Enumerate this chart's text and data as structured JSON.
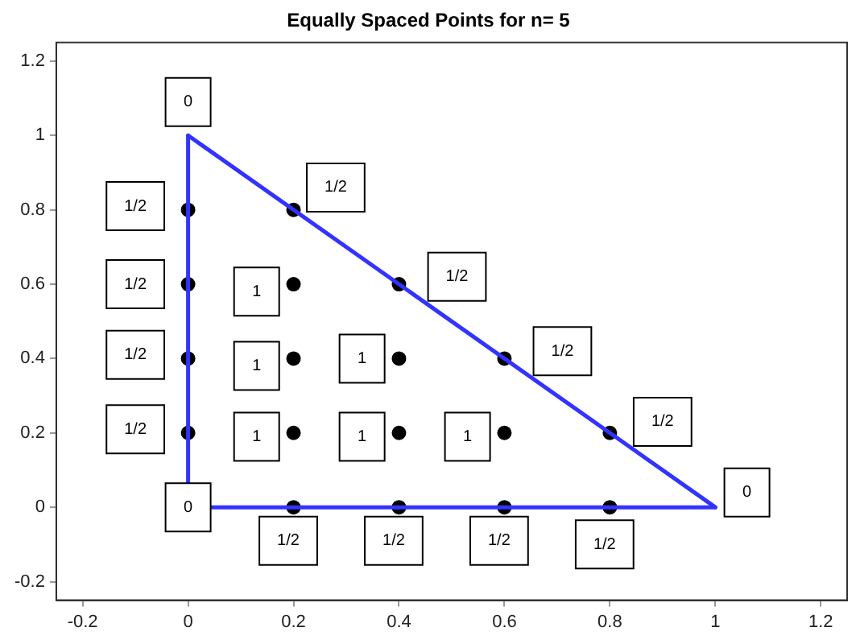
{
  "chart_data": {
    "type": "scatter",
    "title": "Equally Spaced Points for n= 5",
    "xlim": [
      -0.25,
      1.25
    ],
    "ylim": [
      -0.25,
      1.25
    ],
    "xticks": [
      -0.2,
      0,
      0.2,
      0.4,
      0.6,
      0.8,
      1,
      1.2
    ],
    "yticks": [
      -0.2,
      0,
      0.2,
      0.4,
      0.6,
      0.8,
      1,
      1.2
    ],
    "grid": false,
    "legend": false,
    "series": [
      {
        "type": "line",
        "color": "#3333ff",
        "x": [
          0,
          1
        ],
        "values": [
          0,
          0
        ]
      },
      {
        "type": "line",
        "color": "#3333ff",
        "x": [
          0,
          1
        ],
        "values": [
          1,
          0
        ]
      },
      {
        "type": "line",
        "color": "#3333ff",
        "x": [
          0,
          0
        ],
        "values": [
          0,
          1
        ]
      },
      {
        "color": "#000000",
        "marker": "circle",
        "x": [
          0,
          0,
          0,
          0,
          0.2,
          0.4,
          0.6,
          0.8,
          0.2,
          0.4,
          0.6,
          0.2,
          0.4,
          0.2,
          0.2,
          0.4,
          0.6,
          0.8
        ],
        "values": [
          0.2,
          0.4,
          0.6,
          0.8,
          0,
          0,
          0,
          0,
          0.2,
          0.2,
          0.2,
          0.4,
          0.4,
          0.6,
          0.8,
          0.6,
          0.4,
          0.2
        ]
      }
    ],
    "annotations": [
      {
        "text": "0",
        "x": 0,
        "y": 1.09
      },
      {
        "text": "1/2",
        "x": 0.28,
        "y": 0.86
      },
      {
        "text": "1/2",
        "x": 0.51,
        "y": 0.62
      },
      {
        "text": "1/2",
        "x": 0.71,
        "y": 0.42
      },
      {
        "text": "1/2",
        "x": 0.9,
        "y": 0.23
      },
      {
        "text": "0",
        "x": 1.06,
        "y": 0.04
      },
      {
        "text": "0",
        "x": 0,
        "y": 0
      },
      {
        "text": "1/2",
        "x": -0.1,
        "y": 0.81
      },
      {
        "text": "1/2",
        "x": -0.1,
        "y": 0.6
      },
      {
        "text": "1/2",
        "x": -0.1,
        "y": 0.41
      },
      {
        "text": "1/2",
        "x": -0.1,
        "y": 0.21
      },
      {
        "text": "1",
        "x": 0.13,
        "y": 0.58
      },
      {
        "text": "1",
        "x": 0.13,
        "y": 0.38
      },
      {
        "text": "1",
        "x": 0.33,
        "y": 0.4
      },
      {
        "text": "1",
        "x": 0.13,
        "y": 0.19
      },
      {
        "text": "1",
        "x": 0.33,
        "y": 0.19
      },
      {
        "text": "1",
        "x": 0.53,
        "y": 0.19
      },
      {
        "text": "1/2",
        "x": 0.19,
        "y": -0.09
      },
      {
        "text": "1/2",
        "x": 0.39,
        "y": -0.09
      },
      {
        "text": "1/2",
        "x": 0.59,
        "y": -0.09
      },
      {
        "text": "1/2",
        "x": 0.79,
        "y": -0.1
      }
    ]
  }
}
